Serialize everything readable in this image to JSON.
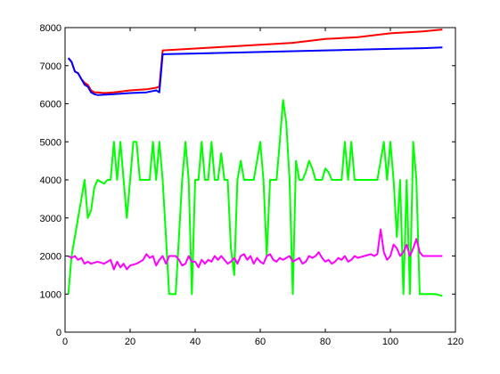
{
  "chart_data": {
    "type": "line",
    "title": "",
    "xlabel": "",
    "ylabel": "",
    "xlim": [
      0,
      120
    ],
    "ylim": [
      0,
      8000
    ],
    "grid": false,
    "legend": "none",
    "x_ticks": [
      "0",
      "20",
      "40",
      "60",
      "80",
      "100",
      "120"
    ],
    "y_ticks": [
      "0",
      "1000",
      "2000",
      "3000",
      "4000",
      "5000",
      "6000",
      "7000",
      "8000"
    ],
    "series": [
      {
        "color": "#ff0000",
        "points": [
          [
            1,
            7200
          ],
          [
            2,
            7100
          ],
          [
            3,
            6850
          ],
          [
            4,
            6800
          ],
          [
            5,
            6650
          ],
          [
            6,
            6550
          ],
          [
            7,
            6500
          ],
          [
            8,
            6350
          ],
          [
            9,
            6300
          ],
          [
            10,
            6300
          ],
          [
            12,
            6280
          ],
          [
            15,
            6300
          ],
          [
            20,
            6350
          ],
          [
            25,
            6380
          ],
          [
            28,
            6420
          ],
          [
            29,
            6450
          ],
          [
            30,
            7400
          ],
          [
            40,
            7450
          ],
          [
            50,
            7500
          ],
          [
            60,
            7550
          ],
          [
            70,
            7600
          ],
          [
            80,
            7700
          ],
          [
            90,
            7750
          ],
          [
            100,
            7850
          ],
          [
            110,
            7900
          ],
          [
            116,
            7950
          ]
        ]
      },
      {
        "color": "#0000ff",
        "points": [
          [
            1,
            7200
          ],
          [
            2,
            7100
          ],
          [
            3,
            6850
          ],
          [
            4,
            6800
          ],
          [
            5,
            6650
          ],
          [
            6,
            6500
          ],
          [
            7,
            6450
          ],
          [
            8,
            6300
          ],
          [
            9,
            6250
          ],
          [
            10,
            6230
          ],
          [
            15,
            6250
          ],
          [
            20,
            6280
          ],
          [
            25,
            6300
          ],
          [
            28,
            6350
          ],
          [
            29,
            6300
          ],
          [
            30,
            7300
          ],
          [
            40,
            7320
          ],
          [
            50,
            7340
          ],
          [
            60,
            7360
          ],
          [
            70,
            7380
          ],
          [
            80,
            7400
          ],
          [
            90,
            7420
          ],
          [
            100,
            7440
          ],
          [
            110,
            7460
          ],
          [
            116,
            7480
          ]
        ]
      },
      {
        "color": "#00ff00",
        "points": [
          [
            1,
            1000
          ],
          [
            2,
            2000
          ],
          [
            3,
            2500
          ],
          [
            4,
            3000
          ],
          [
            5,
            3500
          ],
          [
            6,
            4000
          ],
          [
            7,
            3000
          ],
          [
            8,
            3200
          ],
          [
            9,
            3800
          ],
          [
            10,
            4000
          ],
          [
            12,
            3900
          ],
          [
            13,
            4000
          ],
          [
            14,
            4000
          ],
          [
            15,
            5000
          ],
          [
            16,
            4000
          ],
          [
            17,
            5000
          ],
          [
            18,
            4000
          ],
          [
            19,
            3000
          ],
          [
            20,
            4000
          ],
          [
            21,
            5000
          ],
          [
            22,
            5000
          ],
          [
            23,
            4000
          ],
          [
            24,
            4000
          ],
          [
            25,
            4000
          ],
          [
            26,
            4000
          ],
          [
            27,
            5000
          ],
          [
            28,
            4000
          ],
          [
            29,
            5000
          ],
          [
            30,
            4000
          ],
          [
            31,
            2500
          ],
          [
            32,
            1000
          ],
          [
            33,
            1000
          ],
          [
            34,
            1000
          ],
          [
            35,
            2500
          ],
          [
            36,
            4000
          ],
          [
            37,
            5000
          ],
          [
            38,
            4000
          ],
          [
            39,
            1000
          ],
          [
            40,
            4000
          ],
          [
            41,
            4000
          ],
          [
            42,
            5000
          ],
          [
            43,
            4000
          ],
          [
            44,
            4000
          ],
          [
            45,
            5000
          ],
          [
            46,
            4000
          ],
          [
            47,
            4000
          ],
          [
            48,
            4700
          ],
          [
            49,
            4000
          ],
          [
            50,
            4000
          ],
          [
            51,
            2200
          ],
          [
            52,
            1500
          ],
          [
            53,
            4000
          ],
          [
            54,
            4500
          ],
          [
            55,
            4000
          ],
          [
            56,
            4000
          ],
          [
            57,
            4000
          ],
          [
            58,
            4000
          ],
          [
            59,
            4500
          ],
          [
            60,
            5000
          ],
          [
            61,
            4000
          ],
          [
            62,
            2000
          ],
          [
            63,
            4000
          ],
          [
            64,
            4000
          ],
          [
            65,
            4000
          ],
          [
            66,
            5000
          ],
          [
            67,
            6100
          ],
          [
            68,
            5500
          ],
          [
            69,
            4000
          ],
          [
            70,
            1000
          ],
          [
            71,
            4500
          ],
          [
            72,
            4000
          ],
          [
            73,
            4000
          ],
          [
            74,
            4200
          ],
          [
            75,
            4500
          ],
          [
            76,
            4300
          ],
          [
            77,
            4000
          ],
          [
            78,
            4000
          ],
          [
            79,
            4000
          ],
          [
            80,
            4300
          ],
          [
            81,
            4200
          ],
          [
            82,
            4000
          ],
          [
            83,
            4000
          ],
          [
            84,
            4000
          ],
          [
            85,
            4000
          ],
          [
            86,
            5000
          ],
          [
            87,
            4000
          ],
          [
            88,
            5000
          ],
          [
            89,
            4000
          ],
          [
            90,
            4000
          ],
          [
            92,
            4000
          ],
          [
            94,
            4000
          ],
          [
            96,
            4000
          ],
          [
            97,
            4500
          ],
          [
            98,
            5000
          ],
          [
            99,
            4000
          ],
          [
            100,
            5000
          ],
          [
            101,
            4000
          ],
          [
            102,
            2500
          ],
          [
            103,
            4000
          ],
          [
            104,
            1000
          ],
          [
            105,
            4000
          ],
          [
            106,
            1000
          ],
          [
            107,
            5000
          ],
          [
            108,
            4000
          ],
          [
            109,
            1000
          ],
          [
            110,
            1000
          ],
          [
            112,
            1000
          ],
          [
            114,
            1000
          ],
          [
            116,
            950
          ]
        ]
      },
      {
        "color": "#ff00ff",
        "points": [
          [
            1,
            2000
          ],
          [
            2,
            1950
          ],
          [
            3,
            2000
          ],
          [
            4,
            1900
          ],
          [
            5,
            1950
          ],
          [
            6,
            1800
          ],
          [
            7,
            1850
          ],
          [
            8,
            1800
          ],
          [
            10,
            1850
          ],
          [
            12,
            1800
          ],
          [
            14,
            1900
          ],
          [
            15,
            1650
          ],
          [
            16,
            1850
          ],
          [
            17,
            1700
          ],
          [
            18,
            1800
          ],
          [
            19,
            1650
          ],
          [
            20,
            1750
          ],
          [
            22,
            1800
          ],
          [
            24,
            1900
          ],
          [
            25,
            2050
          ],
          [
            26,
            1950
          ],
          [
            27,
            2000
          ],
          [
            28,
            1750
          ],
          [
            29,
            1900
          ],
          [
            30,
            2000
          ],
          [
            31,
            1800
          ],
          [
            32,
            2000
          ],
          [
            33,
            2000
          ],
          [
            34,
            2000
          ],
          [
            35,
            1900
          ],
          [
            36,
            1750
          ],
          [
            37,
            1800
          ],
          [
            38,
            2000
          ],
          [
            39,
            1850
          ],
          [
            40,
            1850
          ],
          [
            41,
            1700
          ],
          [
            42,
            1900
          ],
          [
            43,
            1800
          ],
          [
            44,
            1900
          ],
          [
            45,
            1850
          ],
          [
            46,
            2000
          ],
          [
            47,
            1900
          ],
          [
            48,
            2000
          ],
          [
            50,
            1800
          ],
          [
            51,
            1850
          ],
          [
            52,
            1950
          ],
          [
            53,
            1800
          ],
          [
            54,
            2000
          ],
          [
            55,
            2050
          ],
          [
            56,
            1900
          ],
          [
            57,
            2000
          ],
          [
            58,
            1800
          ],
          [
            59,
            1950
          ],
          [
            60,
            1850
          ],
          [
            61,
            1800
          ],
          [
            62,
            2000
          ],
          [
            63,
            2050
          ],
          [
            64,
            1900
          ],
          [
            65,
            1850
          ],
          [
            66,
            1950
          ],
          [
            67,
            1900
          ],
          [
            68,
            1950
          ],
          [
            69,
            2000
          ],
          [
            70,
            1850
          ],
          [
            71,
            1900
          ],
          [
            72,
            1950
          ],
          [
            73,
            1800
          ],
          [
            74,
            1850
          ],
          [
            75,
            2000
          ],
          [
            76,
            1950
          ],
          [
            77,
            2000
          ],
          [
            78,
            2100
          ],
          [
            79,
            1950
          ],
          [
            80,
            1850
          ],
          [
            81,
            1900
          ],
          [
            82,
            1800
          ],
          [
            83,
            1850
          ],
          [
            84,
            1950
          ],
          [
            85,
            1900
          ],
          [
            86,
            2000
          ],
          [
            87,
            1850
          ],
          [
            88,
            1900
          ],
          [
            89,
            2000
          ],
          [
            90,
            1950
          ],
          [
            92,
            2000
          ],
          [
            94,
            2050
          ],
          [
            95,
            2000
          ],
          [
            96,
            2050
          ],
          [
            97,
            2700
          ],
          [
            98,
            2100
          ],
          [
            99,
            1900
          ],
          [
            100,
            2000
          ],
          [
            101,
            2300
          ],
          [
            102,
            2200
          ],
          [
            103,
            2000
          ],
          [
            104,
            2100
          ],
          [
            105,
            2300
          ],
          [
            106,
            2000
          ],
          [
            107,
            2200
          ],
          [
            108,
            2450
          ],
          [
            109,
            2100
          ],
          [
            110,
            2000
          ],
          [
            112,
            2000
          ],
          [
            114,
            2000
          ],
          [
            116,
            2000
          ]
        ]
      }
    ]
  }
}
